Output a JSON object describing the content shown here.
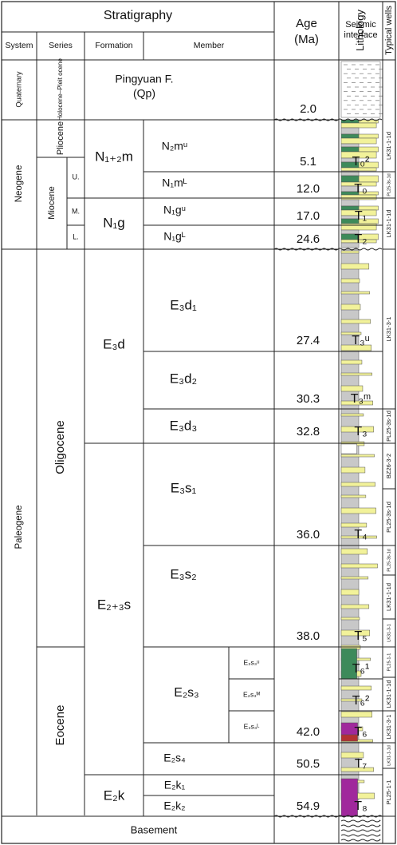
{
  "headers": {
    "stratigraphy": "Stratigraphy",
    "system": "System",
    "series": "Series",
    "formation": "Formation",
    "member": "Member",
    "age_line1": "Age",
    "age_line2": "(Ma)",
    "seismic_line1": "Seismic",
    "seismic_line2": "interface",
    "lithology": "Lithology",
    "typical_wells": "Typical wells"
  },
  "systems": [
    "Quaternary",
    "Neogene",
    "Paleogene"
  ],
  "series": [
    "Holocene–Pleit ocene",
    "Pliocene",
    "Miocene",
    "Oligocene",
    "Eocene"
  ],
  "miocene_subseries": [
    "U.",
    "M.",
    "L."
  ],
  "formations": [
    {
      "id": "pingyuan",
      "line1": "Pingyuan F.",
      "line2": "(Qp)"
    },
    {
      "id": "minghuazhen",
      "label": "N₁₊₂m"
    },
    {
      "id": "guantao",
      "label": "N₁g"
    },
    {
      "id": "dongying",
      "label": "E₃d"
    },
    {
      "id": "shahejie",
      "label": "E₂₊₃s"
    },
    {
      "id": "kongdian",
      "label": "E₂k"
    }
  ],
  "members": [
    "N₂mᵘ",
    "N₁mᴸ",
    "N₁gᵘ",
    "N₁gᴸ",
    "E₃d₁",
    "E₃d₂",
    "E₃d₃",
    "E₃s₁",
    "E₃s₂",
    "E₂s₃",
    "E₂s₄",
    "E₂k₁",
    "E₂k₂"
  ],
  "submembers": [
    "E₂s₃ᵘ",
    "E₂s₃ᴹ",
    "E₂s₃ᴸ"
  ],
  "ages": [
    "2.0",
    "5.1",
    "12.0",
    "17.0",
    "24.6",
    "27.4",
    "30.3",
    "32.8",
    "36.0",
    "38.0",
    "42.0",
    "50.5",
    "54.9"
  ],
  "interfaces": [
    "T₀²",
    "T₀",
    "T₁",
    "T₂",
    "T₃ᵘ",
    "T₃ᵐ",
    "T₃",
    "T₄",
    "T₅",
    "T₆¹",
    "T₆²",
    "T₆",
    "T₇",
    "T₈"
  ],
  "basement": "Basement",
  "wells": [
    "LK31-1-1d",
    "PL25-3s-1d",
    "LK31-1-1d",
    "LK31-3-1",
    "PL25-3s-1d",
    "BZ26-3-2",
    "PL25-3s-1d",
    "PL25-3s-1d",
    "LK31-1-1d",
    "LK31-3-1",
    "PL25-1-1",
    "LK31-1-1d",
    "LK31-3-1",
    "LK31-1-1d",
    "PL25-1-1"
  ],
  "colors": {
    "sandstone": "#f2f29a",
    "mudstone": "#c8c8c8",
    "green_mudstone": "#3d8a5a",
    "purple_mudstone": "#a0289c",
    "red_mudstone": "#b43232",
    "line": "#222222"
  }
}
